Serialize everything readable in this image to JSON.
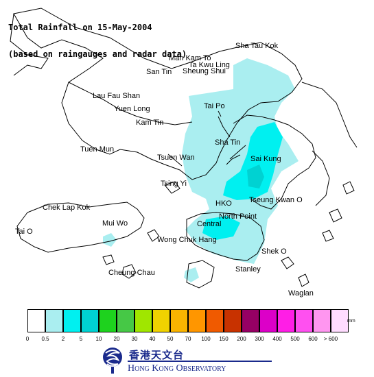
{
  "title": {
    "line1": "Total Rainfall on 15-May-2004",
    "line2": "(based on raingauges and radar data)"
  },
  "places": [
    {
      "name": "Sha Tau Kok"
    },
    {
      "name": "Man Kam To"
    },
    {
      "name": "Ta Kwu Ling"
    },
    {
      "name": "San Tin"
    },
    {
      "name": "Sheung Shui"
    },
    {
      "name": "Lau Fau Shan"
    },
    {
      "name": "Yuen Long"
    },
    {
      "name": "Tai Po"
    },
    {
      "name": "Kam Tin"
    },
    {
      "name": "Tuen Mun"
    },
    {
      "name": "Sha Tin"
    },
    {
      "name": "Tsuen Wan"
    },
    {
      "name": "Sai Kung"
    },
    {
      "name": "Tsing Yi"
    },
    {
      "name": "Chek Lap Kok"
    },
    {
      "name": "HKO"
    },
    {
      "name": "Tseung Kwan O"
    },
    {
      "name": "Mui Wo"
    },
    {
      "name": "North Point"
    },
    {
      "name": "Central"
    },
    {
      "name": "Tai O"
    },
    {
      "name": "Wong Chuk Hang"
    },
    {
      "name": "Shek O"
    },
    {
      "name": "Cheung Chau"
    },
    {
      "name": "Stanley"
    },
    {
      "name": "Waglan"
    }
  ],
  "legend": {
    "unit": "mm",
    "swatch_colors": [
      "#ffffff",
      "#aaeef0",
      "#00f0f0",
      "#00d2d2",
      "#1ed21e",
      "#46c846",
      "#a0e600",
      "#f0d200",
      "#fab400",
      "#ff9600",
      "#f05a00",
      "#c83200",
      "#960064",
      "#dc00c8",
      "#ff1ee6",
      "#ff50f0",
      "#ff96f0",
      "#ffdcff"
    ],
    "labels": [
      "0",
      "0.5",
      "2",
      "5",
      "10",
      "20",
      "30",
      "40",
      "50",
      "70",
      "100",
      "150",
      "200",
      "300",
      "400",
      "500",
      "600",
      "> 600"
    ]
  },
  "organization": {
    "name_cn": "香港天文台",
    "name_en": "Hong Kong Observatory"
  },
  "colors": {
    "accent": "#1a2a8c",
    "rain_light": "#aaeef0",
    "rain_cyan": "#00f0f0",
    "rain_teal": "#00d2d2"
  }
}
